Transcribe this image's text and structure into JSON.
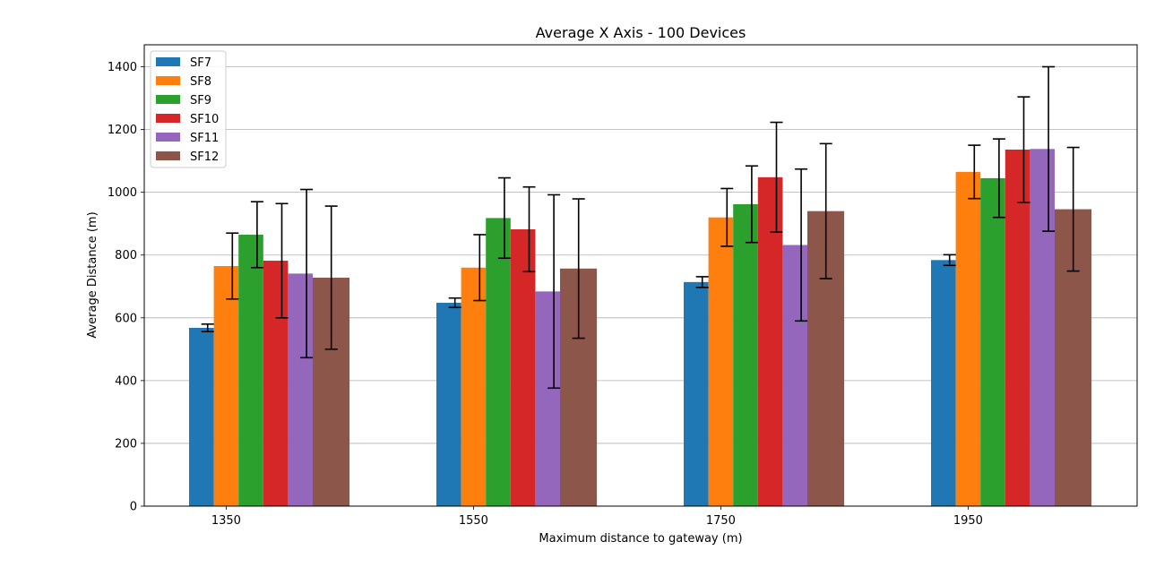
{
  "chart_data": {
    "type": "bar",
    "title": "Average X Axis - 100 Devices",
    "xlabel": "Maximum distance to gateway (m)",
    "ylabel": "Average Distance (m)",
    "categories": [
      "1350",
      "1550",
      "1750",
      "1950"
    ],
    "ylim": [
      0,
      1470
    ],
    "yticks": [
      0,
      200,
      400,
      600,
      800,
      1000,
      1200,
      1400
    ],
    "grid": "horizontal",
    "legend_position": "top-left",
    "series": [
      {
        "name": "SF7",
        "color": "#1f77b4",
        "values": [
          568,
          648,
          714,
          784
        ],
        "errors": [
          12,
          15,
          17,
          17
        ]
      },
      {
        "name": "SF8",
        "color": "#ff7f0e",
        "values": [
          765,
          760,
          920,
          1065
        ],
        "errors": [
          105,
          105,
          92,
          85
        ]
      },
      {
        "name": "SF9",
        "color": "#2ca02c",
        "values": [
          865,
          918,
          962,
          1045
        ],
        "errors": [
          105,
          128,
          122,
          125
        ]
      },
      {
        "name": "SF10",
        "color": "#d62728",
        "values": [
          782,
          882,
          1048,
          1136
        ],
        "errors": [
          182,
          135,
          175,
          168
        ]
      },
      {
        "name": "SF11",
        "color": "#9467bd",
        "values": [
          741,
          684,
          832,
          1138
        ],
        "errors": [
          268,
          308,
          242,
          262
        ]
      },
      {
        "name": "SF12",
        "color": "#8c564b",
        "values": [
          728,
          757,
          940,
          946
        ],
        "errors": [
          228,
          222,
          215,
          197
        ]
      }
    ]
  }
}
